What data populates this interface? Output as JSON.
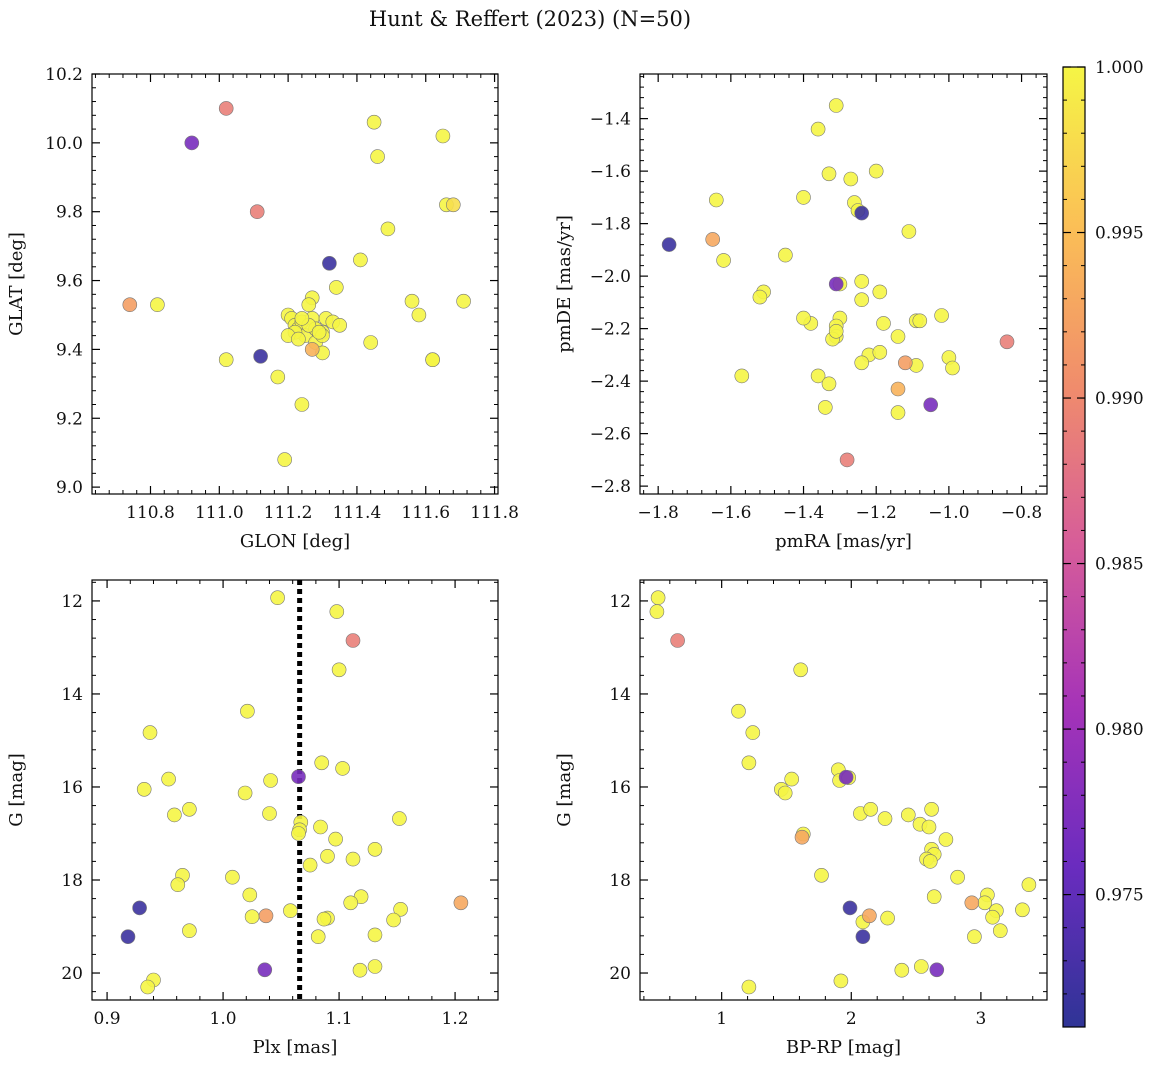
{
  "figure_title": "Hunt & Reffert (2023) (N=50)",
  "colormap": {
    "name": "plasma",
    "stops": [
      "#2f3496",
      "#6a2cbf",
      "#a533b8",
      "#d65c9a",
      "#f08c6c",
      "#fbbf56",
      "#f5f545"
    ],
    "min": 0.971,
    "max": 1.0,
    "ticks": [
      "0.975",
      "0.980",
      "0.985",
      "0.990",
      "0.995",
      "1.000"
    ],
    "tick_values": [
      0.975,
      0.98,
      0.985,
      0.99,
      0.995,
      1.0
    ]
  },
  "chart_data": [
    {
      "type": "scatter",
      "xlabel": "GLON [deg]",
      "ylabel": "GLAT [deg]",
      "xlim": [
        110.63,
        111.81
      ],
      "ylim": [
        8.98,
        10.2
      ],
      "xticks": [
        "110.8",
        "111.0",
        "111.2",
        "111.4",
        "111.6",
        "111.8"
      ],
      "yticks": [
        "9.0",
        "9.2",
        "9.4",
        "9.6",
        "9.8",
        "10.0",
        "10.2"
      ],
      "x": [
        111.02,
        110.92,
        111.11,
        110.74,
        110.82,
        111.32,
        111.12,
        111.02,
        111.45,
        111.46,
        111.65,
        111.66,
        111.68,
        111.49,
        111.41,
        111.56,
        111.58,
        111.62,
        111.71,
        111.34,
        111.27,
        111.26,
        111.2,
        111.21,
        111.22,
        111.23,
        111.24,
        111.25,
        111.27,
        111.28,
        111.3,
        111.31,
        111.33,
        111.22,
        111.2,
        111.27,
        111.28,
        111.3,
        111.17,
        111.24,
        111.19,
        111.62,
        111.44,
        111.28,
        111.26,
        111.23,
        111.3,
        111.35,
        111.24,
        111.29
      ],
      "y": [
        10.1,
        10.0,
        9.8,
        9.53,
        9.53,
        9.65,
        9.38,
        9.37,
        10.06,
        9.96,
        10.02,
        9.82,
        9.82,
        9.75,
        9.66,
        9.54,
        9.5,
        9.37,
        9.54,
        9.58,
        9.55,
        9.53,
        9.5,
        9.49,
        9.47,
        9.46,
        9.48,
        9.44,
        9.49,
        9.46,
        9.45,
        9.49,
        9.48,
        9.45,
        9.44,
        9.4,
        9.42,
        9.39,
        9.32,
        9.24,
        9.08,
        9.37,
        9.42,
        9.46,
        9.47,
        9.43,
        9.44,
        9.47,
        9.49,
        9.45
      ],
      "c": [
        0.989,
        0.977,
        0.989,
        0.992,
        1.0,
        0.972,
        0.972,
        1.0,
        1.0,
        1.0,
        1.0,
        1.0,
        0.998,
        1.0,
        1.0,
        1.0,
        1.0,
        1.0,
        1.0,
        1.0,
        1.0,
        1.0,
        1.0,
        1.0,
        1.0,
        1.0,
        1.0,
        1.0,
        1.0,
        1.0,
        1.0,
        1.0,
        1.0,
        1.0,
        1.0,
        0.994,
        1.0,
        1.0,
        1.0,
        1.0,
        1.0,
        1.0,
        1.0,
        1.0,
        1.0,
        1.0,
        1.0,
        1.0,
        1.0,
        1.0
      ]
    },
    {
      "type": "scatter",
      "xlabel": "pmRA [mas/yr]",
      "ylabel": "pmDE [mas/yr]",
      "xlim": [
        -1.85,
        -0.73
      ],
      "ylim": [
        -2.83,
        -1.23
      ],
      "xticks": [
        "−1.8",
        "−1.6",
        "−1.4",
        "−1.2",
        "−1.0",
        "−0.8"
      ],
      "yticks": [
        "−2.8",
        "−2.6",
        "−2.4",
        "−2.2",
        "−2.0",
        "−1.8",
        "−1.6",
        "−1.4"
      ],
      "x": [
        -1.77,
        -1.64,
        -1.65,
        -1.62,
        -1.57,
        -1.31,
        -1.36,
        -1.33,
        -1.27,
        -1.26,
        -1.24,
        -1.2,
        -1.4,
        -1.45,
        -1.11,
        -1.31,
        -1.24,
        -1.19,
        -1.24,
        -1.51,
        -1.52,
        -1.38,
        -1.4,
        -1.3,
        -1.31,
        -1.18,
        -1.31,
        -1.32,
        -1.36,
        -1.33,
        -1.34,
        -1.22,
        -1.14,
        -1.09,
        -1.08,
        -1.09,
        -1.02,
        -1.0,
        -0.99,
        -0.84,
        -1.12,
        -1.14,
        -1.14,
        -1.05,
        -1.28,
        -1.24,
        -1.19,
        -1.3,
        -1.25,
        -1.31
      ],
      "y": [
        -1.88,
        -1.71,
        -1.86,
        -1.94,
        -2.38,
        -1.35,
        -1.44,
        -1.61,
        -1.63,
        -1.72,
        -1.76,
        -1.6,
        -1.7,
        -1.92,
        -1.83,
        -2.03,
        -2.02,
        -2.06,
        -2.09,
        -2.06,
        -2.08,
        -2.18,
        -2.16,
        -2.16,
        -2.19,
        -2.18,
        -2.23,
        -2.24,
        -2.38,
        -2.41,
        -2.5,
        -2.3,
        -2.23,
        -2.17,
        -2.17,
        -2.34,
        -2.15,
        -2.31,
        -2.35,
        -2.25,
        -2.33,
        -2.43,
        -2.52,
        -2.49,
        -2.7,
        -2.33,
        -2.29,
        -2.03,
        -1.75,
        -2.21
      ],
      "c": [
        0.972,
        1.0,
        0.993,
        1.0,
        1.0,
        1.0,
        1.0,
        1.0,
        1.0,
        1.0,
        0.972,
        1.0,
        1.0,
        1.0,
        1.0,
        0.977,
        1.0,
        1.0,
        1.0,
        1.0,
        1.0,
        1.0,
        1.0,
        1.0,
        1.0,
        1.0,
        1.0,
        1.0,
        1.0,
        1.0,
        1.0,
        1.0,
        1.0,
        1.0,
        1.0,
        1.0,
        1.0,
        1.0,
        1.0,
        0.989,
        0.992,
        0.994,
        1.0,
        0.977,
        0.989,
        1.0,
        1.0,
        1.0,
        1.0,
        1.0
      ]
    },
    {
      "type": "scatter",
      "xlabel": "Plx [mas]",
      "ylabel": "G [mag]",
      "xlim": [
        0.887,
        1.237
      ],
      "ylim": [
        20.58,
        11.55
      ],
      "xticks": [
        "0.9",
        "1.0",
        "1.1",
        "1.2"
      ],
      "yticks": [
        "12",
        "14",
        "16",
        "18",
        "20"
      ],
      "vline": 1.066,
      "x": [
        1.047,
        1.098,
        1.112,
        1.1,
        1.021,
        0.937,
        1.103,
        1.085,
        1.065,
        1.041,
        0.953,
        0.932,
        1.019,
        0.958,
        0.971,
        1.04,
        1.067,
        1.066,
        1.065,
        1.097,
        1.084,
        1.152,
        1.131,
        1.075,
        1.09,
        1.112,
        0.965,
        1.008,
        0.961,
        1.023,
        1.119,
        1.11,
        1.153,
        1.147,
        1.09,
        1.087,
        1.025,
        1.058,
        1.082,
        1.131,
        0.971,
        1.205,
        1.037,
        0.928,
        0.918,
        1.036,
        1.118,
        1.131,
        0.94,
        0.935
      ],
      "y": [
        11.93,
        12.23,
        12.85,
        13.48,
        14.37,
        14.83,
        15.6,
        15.48,
        15.78,
        15.86,
        15.83,
        16.05,
        16.13,
        16.6,
        16.48,
        16.57,
        16.76,
        16.92,
        17.0,
        17.12,
        16.86,
        16.68,
        17.34,
        17.68,
        17.49,
        17.55,
        17.9,
        17.94,
        18.1,
        18.32,
        18.36,
        18.49,
        18.63,
        18.86,
        18.82,
        18.84,
        18.79,
        18.66,
        19.22,
        19.18,
        19.09,
        18.49,
        18.77,
        18.6,
        19.22,
        19.93,
        19.94,
        19.86,
        20.15,
        20.3
      ],
      "c": [
        1.0,
        1.0,
        0.989,
        1.0,
        1.0,
        1.0,
        1.0,
        1.0,
        0.977,
        1.0,
        1.0,
        1.0,
        1.0,
        1.0,
        1.0,
        1.0,
        1.0,
        1.0,
        1.0,
        1.0,
        1.0,
        1.0,
        1.0,
        1.0,
        1.0,
        1.0,
        1.0,
        1.0,
        1.0,
        1.0,
        1.0,
        1.0,
        1.0,
        1.0,
        1.0,
        1.0,
        1.0,
        1.0,
        1.0,
        1.0,
        1.0,
        0.993,
        0.992,
        0.972,
        0.972,
        0.977,
        1.0,
        1.0,
        1.0,
        1.0
      ]
    },
    {
      "type": "scatter",
      "xlabel": "BP-RP [mag]",
      "ylabel": "G [mag]",
      "xlim": [
        0.37,
        3.51
      ],
      "ylim": [
        20.58,
        11.55
      ],
      "xticks": [
        "1",
        "2",
        "3"
      ],
      "yticks": [
        "12",
        "14",
        "16",
        "18",
        "20"
      ],
      "x": [
        0.51,
        0.5,
        0.66,
        1.61,
        1.13,
        1.24,
        1.21,
        1.9,
        1.96,
        1.54,
        1.91,
        1.46,
        1.49,
        2.07,
        2.15,
        2.26,
        2.44,
        2.53,
        2.6,
        2.62,
        2.62,
        2.73,
        2.64,
        2.58,
        1.63,
        1.62,
        1.77,
        2.82,
        3.37,
        3.05,
        2.64,
        2.93,
        3.32,
        3.03,
        3.12,
        3.09,
        2.95,
        3.15,
        2.28,
        2.14,
        2.09,
        1.99,
        2.09,
        2.66,
        2.54,
        2.39,
        1.92,
        1.21,
        2.61,
        1.98
      ],
      "y": [
        11.93,
        12.23,
        12.85,
        13.48,
        14.37,
        14.83,
        15.48,
        15.63,
        15.79,
        15.83,
        15.86,
        16.05,
        16.13,
        16.57,
        16.48,
        16.68,
        16.6,
        16.8,
        16.86,
        16.48,
        17.34,
        17.13,
        17.45,
        17.55,
        17.01,
        17.08,
        17.9,
        17.94,
        18.1,
        18.32,
        18.36,
        18.49,
        18.64,
        18.49,
        18.66,
        18.8,
        19.22,
        19.09,
        18.82,
        18.77,
        18.9,
        18.6,
        19.22,
        19.93,
        19.86,
        19.94,
        20.17,
        20.3,
        17.6,
        15.8
      ],
      "c": [
        1.0,
        1.0,
        0.989,
        1.0,
        1.0,
        1.0,
        1.0,
        1.0,
        0.977,
        1.0,
        1.0,
        1.0,
        1.0,
        1.0,
        1.0,
        1.0,
        1.0,
        1.0,
        1.0,
        1.0,
        1.0,
        1.0,
        1.0,
        1.0,
        1.0,
        0.993,
        1.0,
        1.0,
        1.0,
        1.0,
        1.0,
        0.993,
        1.0,
        1.0,
        1.0,
        1.0,
        1.0,
        1.0,
        1.0,
        0.993,
        1.0,
        0.972,
        0.972,
        0.977,
        1.0,
        1.0,
        1.0,
        1.0,
        1.0,
        1.0
      ]
    }
  ]
}
